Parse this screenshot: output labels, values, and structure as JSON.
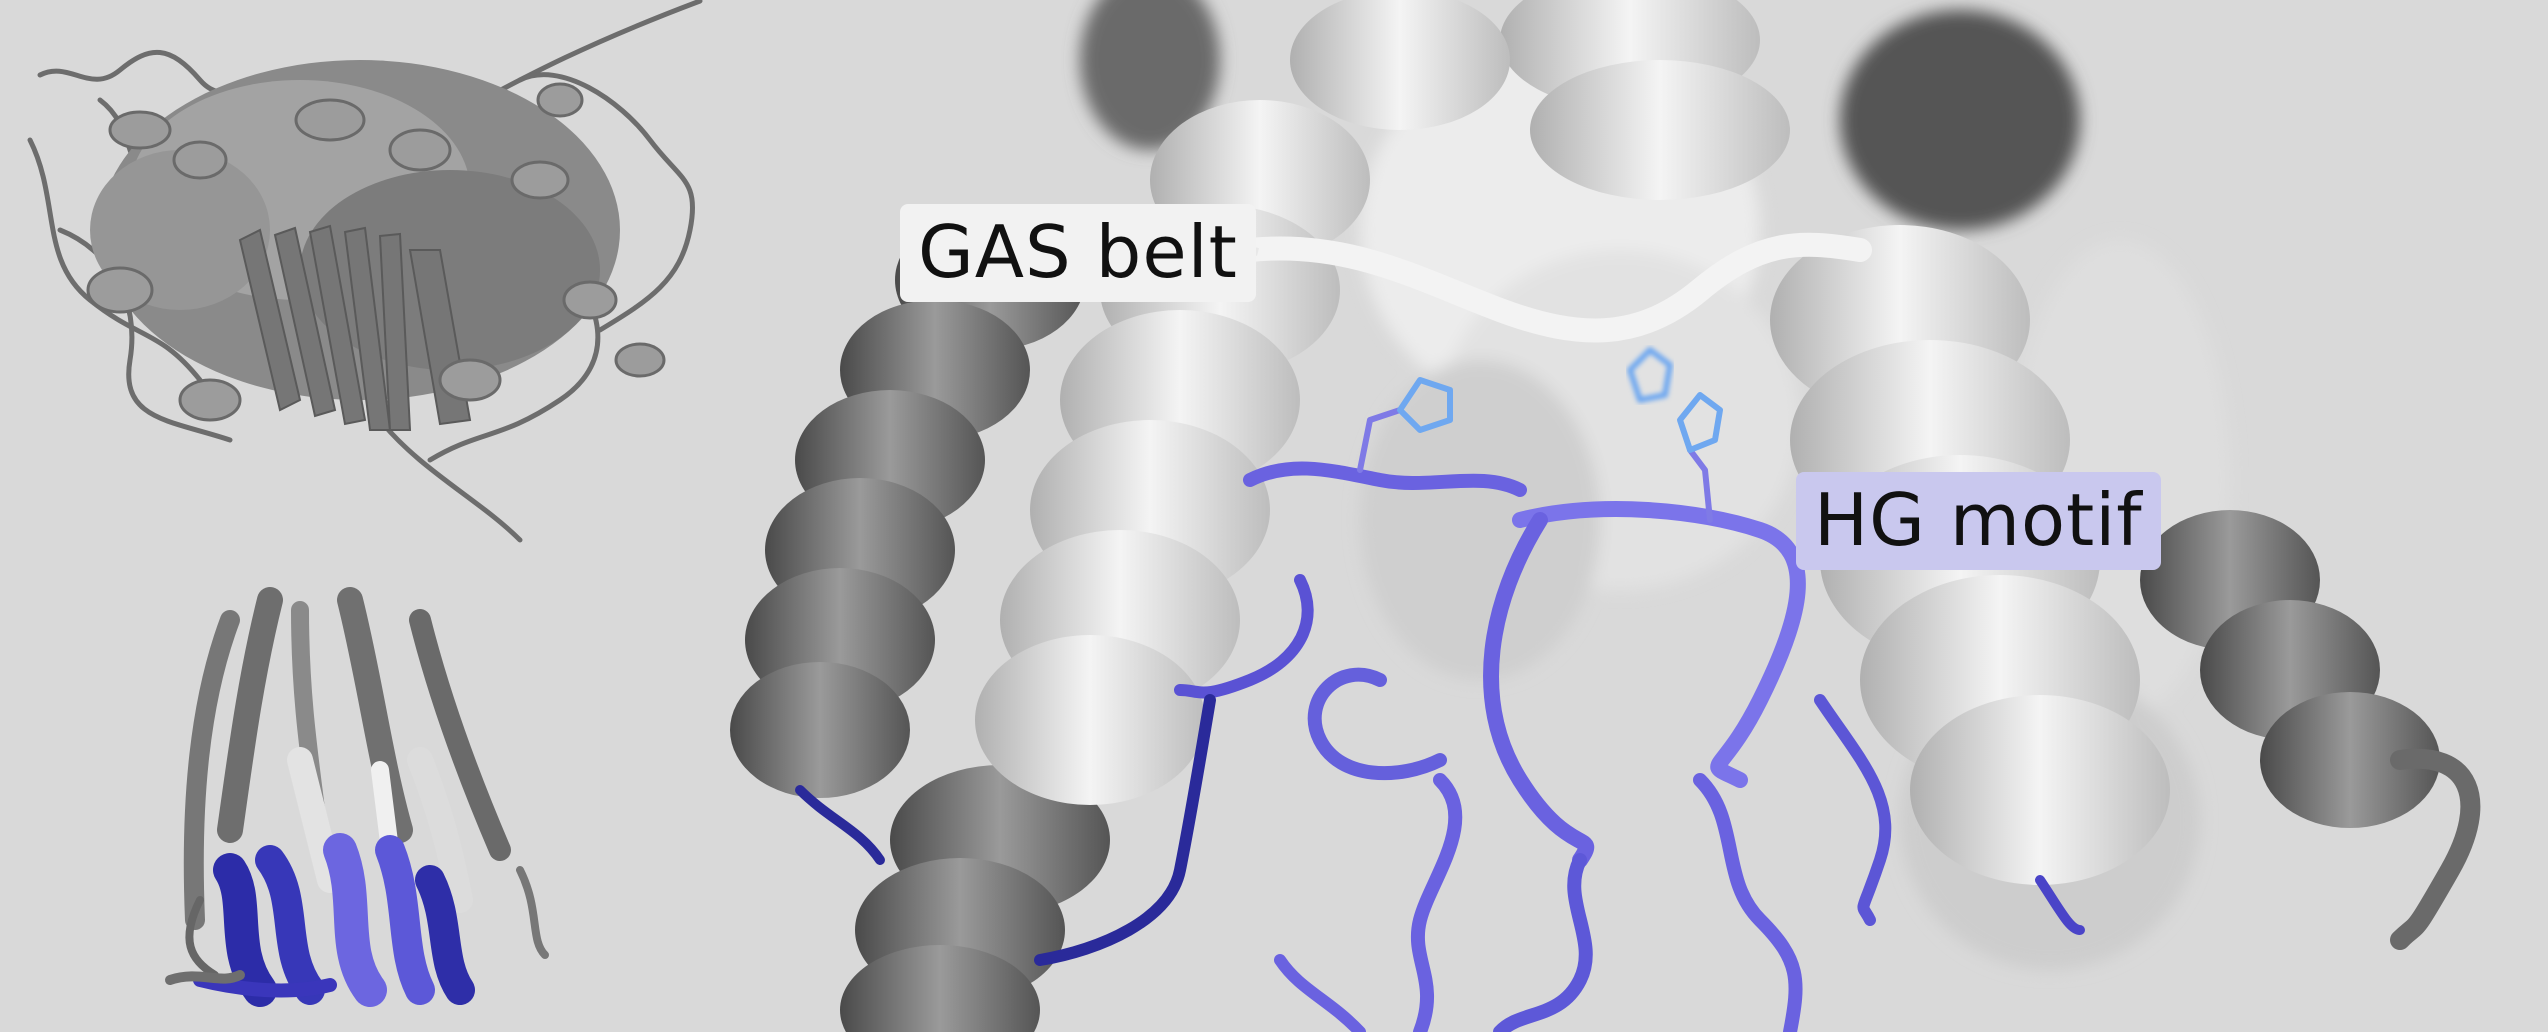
{
  "labels": {
    "gas_belt": "GAS belt",
    "hg_motif": "HG motif"
  },
  "colors": {
    "background": "#d9d9d9",
    "protein_gray": "#7a7a7a",
    "helix_white": "#f2f2f2",
    "motif_blue": "#6a62e0",
    "motif_dark_blue": "#2a2a9a",
    "hg_label_bg": "#c9c8ee",
    "histidine_blue": "#6fa8f0"
  },
  "scene": {
    "left_view": "full-protein-cartoon",
    "right_view": "zoomed-transmembrane-region"
  }
}
